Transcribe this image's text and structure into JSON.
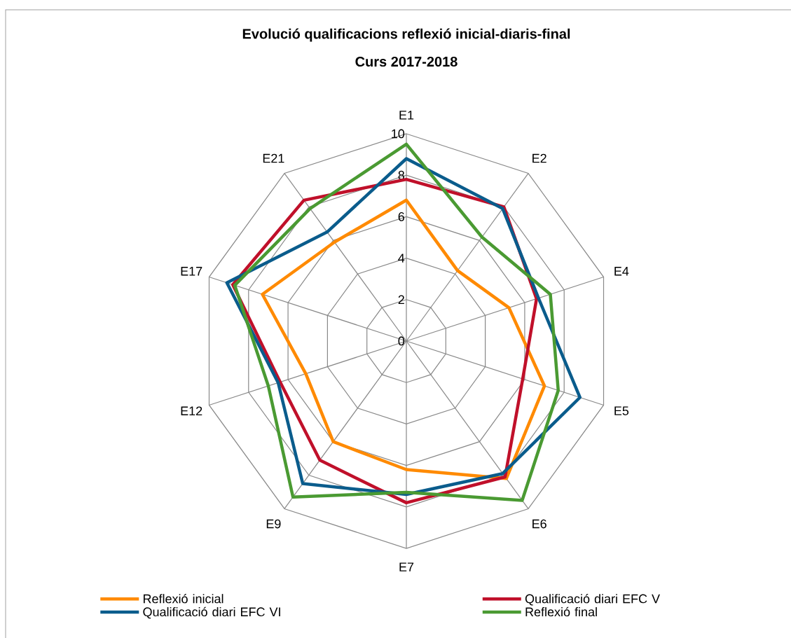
{
  "chart_data": {
    "type": "radar",
    "title": "Evolució qualificacions reflexió inicial-diaris-final",
    "subtitle": "Curs 2017-2018",
    "categories": [
      "E1",
      "E2",
      "E4",
      "E5",
      "E6",
      "E7",
      "E9",
      "E12",
      "E17",
      "E21"
    ],
    "series": [
      {
        "name": "Reflexió inicial",
        "color": "#ff8a00",
        "values": [
          6.8,
          4.2,
          5.2,
          7.0,
          8.2,
          6.2,
          6.0,
          5.1,
          7.3,
          5.9
        ]
      },
      {
        "name": "Qualificació diari EFC V",
        "color": "#c0102a",
        "values": [
          7.8,
          8.0,
          6.6,
          5.9,
          8.1,
          7.8,
          7.1,
          6.4,
          8.8,
          8.4
        ]
      },
      {
        "name": "Qualificació diari EFC VI",
        "color": "#0a5c8c",
        "values": [
          8.8,
          7.9,
          6.7,
          8.8,
          7.9,
          7.4,
          8.5,
          6.5,
          9.1,
          6.5
        ]
      },
      {
        "name": "Reflexió final",
        "color": "#4a9a32",
        "values": [
          9.5,
          6.2,
          7.3,
          7.7,
          9.5,
          7.3,
          9.3,
          7.0,
          8.7,
          7.9
        ]
      }
    ],
    "ylim": [
      0,
      10
    ],
    "yticks": [
      0,
      2,
      4,
      6,
      8,
      10
    ],
    "grid": true,
    "legend": "bottom"
  }
}
